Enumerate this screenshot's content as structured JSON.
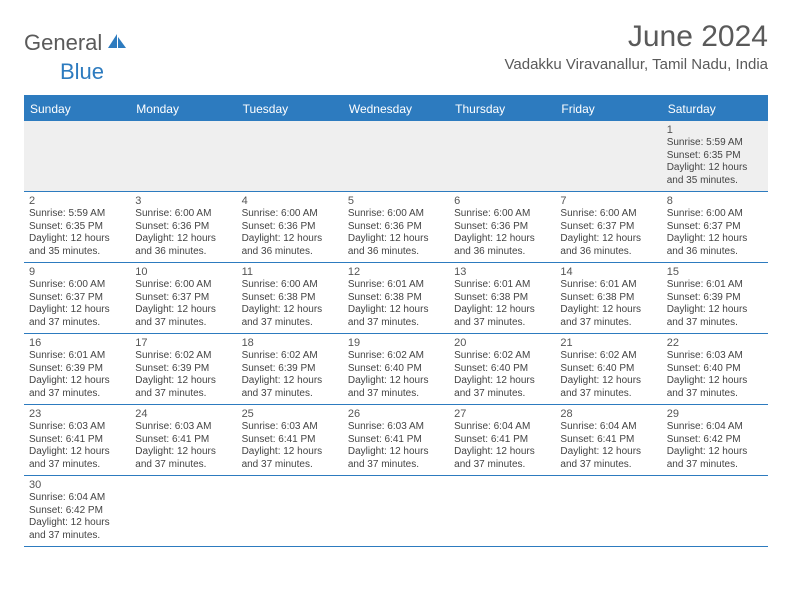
{
  "logo": {
    "part1": "General",
    "part2": "Blue"
  },
  "title": "June 2024",
  "location": "Vadakku Viravanallur, Tamil Nadu, India",
  "colors": {
    "brand_blue": "#2d7bbf",
    "text_gray": "#5a5a5a",
    "row_stripe": "#efefef",
    "background": "#ffffff"
  },
  "weekdays": [
    "Sunday",
    "Monday",
    "Tuesday",
    "Wednesday",
    "Thursday",
    "Friday",
    "Saturday"
  ],
  "weeks": [
    [
      null,
      null,
      null,
      null,
      null,
      null,
      {
        "d": "1",
        "sr": "5:59 AM",
        "ss": "6:35 PM",
        "dl": "12 hours and 35 minutes."
      }
    ],
    [
      {
        "d": "2",
        "sr": "5:59 AM",
        "ss": "6:35 PM",
        "dl": "12 hours and 35 minutes."
      },
      {
        "d": "3",
        "sr": "6:00 AM",
        "ss": "6:36 PM",
        "dl": "12 hours and 36 minutes."
      },
      {
        "d": "4",
        "sr": "6:00 AM",
        "ss": "6:36 PM",
        "dl": "12 hours and 36 minutes."
      },
      {
        "d": "5",
        "sr": "6:00 AM",
        "ss": "6:36 PM",
        "dl": "12 hours and 36 minutes."
      },
      {
        "d": "6",
        "sr": "6:00 AM",
        "ss": "6:36 PM",
        "dl": "12 hours and 36 minutes."
      },
      {
        "d": "7",
        "sr": "6:00 AM",
        "ss": "6:37 PM",
        "dl": "12 hours and 36 minutes."
      },
      {
        "d": "8",
        "sr": "6:00 AM",
        "ss": "6:37 PM",
        "dl": "12 hours and 36 minutes."
      }
    ],
    [
      {
        "d": "9",
        "sr": "6:00 AM",
        "ss": "6:37 PM",
        "dl": "12 hours and 37 minutes."
      },
      {
        "d": "10",
        "sr": "6:00 AM",
        "ss": "6:37 PM",
        "dl": "12 hours and 37 minutes."
      },
      {
        "d": "11",
        "sr": "6:00 AM",
        "ss": "6:38 PM",
        "dl": "12 hours and 37 minutes."
      },
      {
        "d": "12",
        "sr": "6:01 AM",
        "ss": "6:38 PM",
        "dl": "12 hours and 37 minutes."
      },
      {
        "d": "13",
        "sr": "6:01 AM",
        "ss": "6:38 PM",
        "dl": "12 hours and 37 minutes."
      },
      {
        "d": "14",
        "sr": "6:01 AM",
        "ss": "6:38 PM",
        "dl": "12 hours and 37 minutes."
      },
      {
        "d": "15",
        "sr": "6:01 AM",
        "ss": "6:39 PM",
        "dl": "12 hours and 37 minutes."
      }
    ],
    [
      {
        "d": "16",
        "sr": "6:01 AM",
        "ss": "6:39 PM",
        "dl": "12 hours and 37 minutes."
      },
      {
        "d": "17",
        "sr": "6:02 AM",
        "ss": "6:39 PM",
        "dl": "12 hours and 37 minutes."
      },
      {
        "d": "18",
        "sr": "6:02 AM",
        "ss": "6:39 PM",
        "dl": "12 hours and 37 minutes."
      },
      {
        "d": "19",
        "sr": "6:02 AM",
        "ss": "6:40 PM",
        "dl": "12 hours and 37 minutes."
      },
      {
        "d": "20",
        "sr": "6:02 AM",
        "ss": "6:40 PM",
        "dl": "12 hours and 37 minutes."
      },
      {
        "d": "21",
        "sr": "6:02 AM",
        "ss": "6:40 PM",
        "dl": "12 hours and 37 minutes."
      },
      {
        "d": "22",
        "sr": "6:03 AM",
        "ss": "6:40 PM",
        "dl": "12 hours and 37 minutes."
      }
    ],
    [
      {
        "d": "23",
        "sr": "6:03 AM",
        "ss": "6:41 PM",
        "dl": "12 hours and 37 minutes."
      },
      {
        "d": "24",
        "sr": "6:03 AM",
        "ss": "6:41 PM",
        "dl": "12 hours and 37 minutes."
      },
      {
        "d": "25",
        "sr": "6:03 AM",
        "ss": "6:41 PM",
        "dl": "12 hours and 37 minutes."
      },
      {
        "d": "26",
        "sr": "6:03 AM",
        "ss": "6:41 PM",
        "dl": "12 hours and 37 minutes."
      },
      {
        "d": "27",
        "sr": "6:04 AM",
        "ss": "6:41 PM",
        "dl": "12 hours and 37 minutes."
      },
      {
        "d": "28",
        "sr": "6:04 AM",
        "ss": "6:41 PM",
        "dl": "12 hours and 37 minutes."
      },
      {
        "d": "29",
        "sr": "6:04 AM",
        "ss": "6:42 PM",
        "dl": "12 hours and 37 minutes."
      }
    ],
    [
      {
        "d": "30",
        "sr": "6:04 AM",
        "ss": "6:42 PM",
        "dl": "12 hours and 37 minutes."
      },
      null,
      null,
      null,
      null,
      null,
      null
    ]
  ],
  "labels": {
    "sunrise_prefix": "Sunrise: ",
    "sunset_prefix": "Sunset: ",
    "daylight_prefix": "Daylight: "
  }
}
